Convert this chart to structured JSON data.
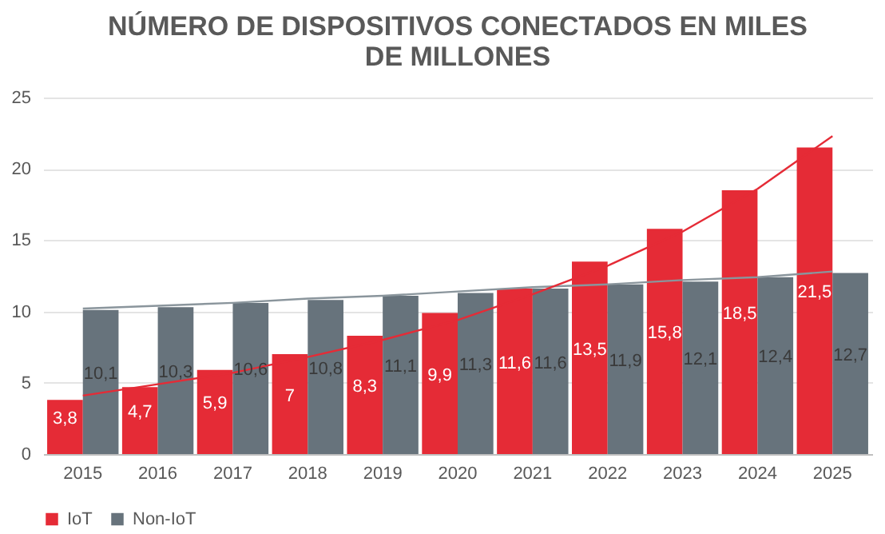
{
  "chart_data": {
    "type": "bar",
    "title": "NÚMERO DE DISPOSITIVOS CONECTADOS EN MILES DE MILLONES",
    "categories": [
      "2015",
      "2016",
      "2017",
      "2018",
      "2019",
      "2020",
      "2021",
      "2022",
      "2023",
      "2024",
      "2025"
    ],
    "series": [
      {
        "name": "IoT",
        "color": "#e52b36",
        "values": [
          3.8,
          4.7,
          5.9,
          7,
          8.3,
          9.9,
          11.6,
          13.5,
          15.8,
          18.5,
          21.5
        ],
        "value_labels": [
          "3,8",
          "4,7",
          "5,9",
          "7",
          "8,3",
          "9,9",
          "11,6",
          "13,5",
          "15,8",
          "18,5",
          "21,5"
        ]
      },
      {
        "name": "Non-IoT",
        "color": "#67737c",
        "values": [
          10.1,
          10.3,
          10.6,
          10.8,
          11.1,
          11.3,
          11.6,
          11.9,
          12.1,
          12.4,
          12.7
        ],
        "value_labels": [
          "10,1",
          "10,3",
          "10,6",
          "10,8",
          "11,1",
          "11,3",
          "11,6",
          "11,9",
          "12,1",
          "12,4",
          "12,7"
        ]
      },
      {
        "type": "line",
        "color": "#e52b36",
        "values": [
          4.1,
          4.9,
          5.7,
          6.8,
          8.0,
          9.4,
          11.2,
          13.2,
          15.6,
          18.6,
          22.3
        ]
      },
      {
        "type": "line",
        "color": "#8a959c",
        "values": [
          10.2,
          10.4,
          10.6,
          10.9,
          11.1,
          11.4,
          11.7,
          11.9,
          12.2,
          12.4,
          12.8
        ]
      }
    ],
    "ylim": [
      0,
      25
    ],
    "yticks": [
      0,
      5,
      10,
      15,
      20,
      25
    ],
    "grid": "y",
    "legend": "bottom",
    "marker": "none"
  }
}
